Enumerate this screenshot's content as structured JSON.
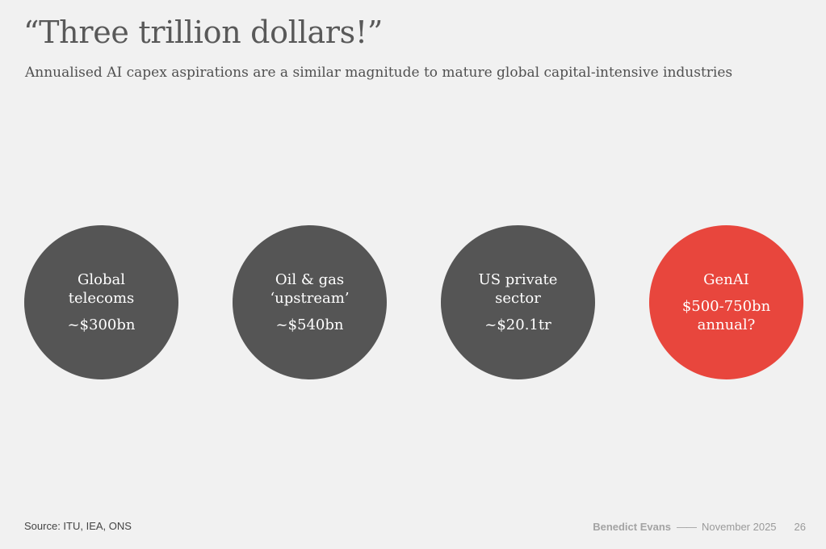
{
  "title": "“Three trillion dollars!”",
  "subtitle": "Annualised AI capex aspirations are a similar magnitude to mature global capital-intensive industries",
  "circles": [
    {
      "line1": "Global",
      "line2": "telecoms",
      "value": "~$300bn"
    },
    {
      "line1": "Oil & gas",
      "line2": "‘upstream’",
      "value": "~$540bn"
    },
    {
      "line1": "US private",
      "line2": "sector",
      "value": "~$20.1tr"
    },
    {
      "line1": "GenAI",
      "value": "$500-750bn",
      "value2": "annual?"
    }
  ],
  "colors": {
    "background": "#f1f1f1",
    "circle_grey": "#555555",
    "circle_highlight": "#e8463d"
  },
  "footer": {
    "source": "Source: ITU, IEA, ONS",
    "author": "Benedict Evans",
    "separator": "——",
    "date": "November 2025",
    "page": "26"
  }
}
